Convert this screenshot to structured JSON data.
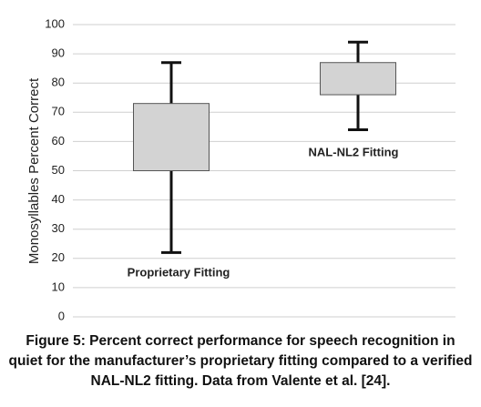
{
  "chart_data": {
    "type": "box",
    "y_label": "Monosyllables Percent Correct",
    "categories": [
      "Proprietary Fitting",
      "NAL-NL2 Fitting"
    ],
    "low": [
      22,
      64
    ],
    "q1": [
      50,
      76
    ],
    "q3": [
      73,
      87
    ],
    "high": [
      87,
      94
    ],
    "color": "#d3d3d3",
    "ylim": [
      0,
      100
    ],
    "yticks": [
      0,
      10,
      20,
      30,
      40,
      50,
      60,
      70,
      80,
      90,
      100
    ],
    "grid": true
  },
  "caption": "Figure 5: Percent correct performance for speech recognition in quiet for the manufacturer’s proprietary fitting compared to a verified NAL-NL2 fitting. Data from Valente et al. [24]."
}
